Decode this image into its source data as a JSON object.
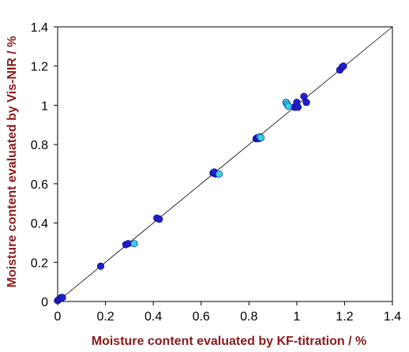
{
  "chart_data": {
    "type": "scatter",
    "title": "",
    "xlabel": "Moisture content evaluated by KF-titration / %",
    "ylabel": "Moisture content evaluated by Vis-NIR / %",
    "xlim": [
      0,
      1.4
    ],
    "ylim": [
      0,
      1.4
    ],
    "x_ticks": [
      "0",
      "0.2",
      "0.4",
      "0.6",
      "0.8",
      "1",
      "1.2",
      "1.4"
    ],
    "y_ticks": [
      "0",
      "0.2",
      "0.4",
      "0.6",
      "0.8",
      "1",
      "1.2",
      "1.4"
    ],
    "grid": false,
    "legend": "none",
    "reference_line": {
      "from": [
        0,
        0
      ],
      "to": [
        1.4,
        1.4
      ],
      "color": "#000000"
    },
    "series": [
      {
        "color": "#1f1fd1",
        "points": [
          [
            0.0,
            0.005
          ],
          [
            0.005,
            0.01
          ],
          [
            0.01,
            0.015
          ],
          [
            0.015,
            0.02
          ],
          [
            0.02,
            0.02
          ],
          [
            0.18,
            0.18
          ],
          [
            0.285,
            0.29
          ],
          [
            0.295,
            0.295
          ],
          [
            0.415,
            0.425
          ],
          [
            0.425,
            0.42
          ],
          [
            0.65,
            0.655
          ],
          [
            0.66,
            0.65
          ],
          [
            0.655,
            0.66
          ],
          [
            0.83,
            0.83
          ],
          [
            0.835,
            0.835
          ],
          [
            0.84,
            0.83
          ],
          [
            0.99,
            0.99
          ],
          [
            1.0,
            1.0
          ],
          [
            1.0,
            1.015
          ],
          [
            1.005,
            0.99
          ],
          [
            1.03,
            1.045
          ],
          [
            1.04,
            1.015
          ],
          [
            1.18,
            1.18
          ],
          [
            1.19,
            1.195
          ],
          [
            1.195,
            1.2
          ]
        ]
      },
      {
        "color": "#36d2e8",
        "points": [
          [
            0.32,
            0.295
          ],
          [
            0.675,
            0.65
          ],
          [
            0.845,
            0.84
          ],
          [
            0.85,
            0.835
          ],
          [
            0.955,
            1.015
          ],
          [
            0.96,
            1.005
          ],
          [
            0.965,
            0.995
          ]
        ]
      }
    ]
  },
  "colors": {
    "axis_title": "#8b1a1a",
    "axis": "#000000",
    "background": "#ffffff"
  }
}
